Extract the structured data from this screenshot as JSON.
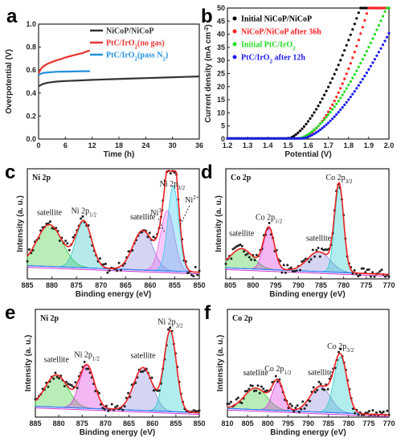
{
  "chart_data": [
    {
      "id": "a",
      "panel_label": "a",
      "type": "line",
      "xlabel": "Time (h)",
      "ylabel": "Overpotential (V)",
      "xlim": [
        0,
        36
      ],
      "ylim": [
        0,
        1.0
      ],
      "xticks": [
        0,
        6,
        12,
        18,
        24,
        30,
        36
      ],
      "yticks": [
        0.0,
        0.2,
        0.4,
        0.6,
        0.8,
        1.0
      ],
      "legend_position": "top-right",
      "series": [
        {
          "name": "NiCoP/NiCoP",
          "color": "#333333",
          "x": [
            0,
            1,
            2,
            4,
            6,
            9,
            12,
            16,
            20,
            24,
            28,
            32,
            36
          ],
          "y": [
            0.46,
            0.48,
            0.49,
            0.5,
            0.505,
            0.51,
            0.515,
            0.52,
            0.525,
            0.53,
            0.535,
            0.54,
            0.545
          ]
        },
        {
          "name": "PtC/IrO2(no gas)",
          "color": "#e8342f",
          "x": [
            0,
            0.5,
            1,
            2,
            3,
            4,
            5,
            6,
            7,
            8,
            9,
            10,
            11,
            11.5
          ],
          "y": [
            0.57,
            0.61,
            0.63,
            0.655,
            0.67,
            0.685,
            0.695,
            0.71,
            0.72,
            0.73,
            0.74,
            0.75,
            0.765,
            0.77
          ]
        },
        {
          "name": "PtC/IrO2(pass N2)",
          "color": "#1f8fe0",
          "x": [
            0,
            1,
            2,
            4,
            6,
            8,
            10,
            11.5
          ],
          "y": [
            0.56,
            0.575,
            0.58,
            0.585,
            0.587,
            0.588,
            0.59,
            0.59
          ]
        }
      ]
    },
    {
      "id": "b",
      "panel_label": "b",
      "type": "scatter",
      "xlabel": "Potential (V)",
      "ylabel": "Current density (mA cm-2)",
      "xlim": [
        1.2,
        2.0
      ],
      "ylim": [
        0,
        50
      ],
      "xticks": [
        1.2,
        1.3,
        1.4,
        1.5,
        1.6,
        1.7,
        1.8,
        1.9,
        2.0
      ],
      "yticks": [
        0,
        5,
        10,
        15,
        20,
        25,
        30,
        35,
        40,
        45,
        50
      ],
      "legend_position": "top-left",
      "series": [
        {
          "name": "Initial NiCoP/NiCoP",
          "color": "#000000",
          "onset": 1.5,
          "k": 80,
          "p": 1.6
        },
        {
          "name": "NiCoP/NiCoP after 36h",
          "color": "#ff2020",
          "onset": 1.55,
          "k": 115,
          "p": 1.9
        },
        {
          "name": "Initial PtC/IrO2",
          "color": "#22dd22",
          "onset": 1.55,
          "k": 58,
          "p": 1.6
        },
        {
          "name": "PtC/IrO2 after 12h",
          "color": "#1a1aee",
          "onset": 1.57,
          "k": 48,
          "p": 1.6
        }
      ]
    },
    {
      "id": "c",
      "panel_label": "c",
      "type": "line",
      "title": "Ni 2p",
      "xlabel": "Binding energy (eV)",
      "ylabel": "Intensity (a. u.)",
      "xlim": [
        885,
        850
      ],
      "xticks": [
        885,
        880,
        875,
        870,
        865,
        860,
        855,
        850
      ],
      "peaks": [
        {
          "center": 880.5,
          "height": 0.38,
          "width": 2.6,
          "color": "#33cc33",
          "label": "satellite"
        },
        {
          "center": 873.5,
          "height": 0.42,
          "width": 1.6,
          "color": "#2ec4c4",
          "label": "Ni 2p1/2"
        },
        {
          "center": 861.5,
          "height": 0.36,
          "width": 2.0,
          "color": "#8888dd",
          "label": "satellite"
        },
        {
          "center": 856.5,
          "height": 0.55,
          "width": 1.4,
          "color": "#ee66ee",
          "label": "Ni3+"
        },
        {
          "center": 855.3,
          "height": 0.78,
          "width": 1.1,
          "color": "#33ccee",
          "label": "Ni2+"
        }
      ],
      "baseline": [
        0.12,
        0.06
      ],
      "labels": [
        "Ni 2p3/2",
        "Ni3+",
        "Ni2+"
      ]
    },
    {
      "id": "d",
      "panel_label": "d",
      "type": "line",
      "title": "Co 2p",
      "xlabel": "Binding energy (eV)",
      "ylabel": "Intensity (a. u.)",
      "xlim": [
        806,
        770
      ],
      "xticks": [
        805,
        800,
        795,
        790,
        785,
        780,
        775,
        770
      ],
      "peaks": [
        {
          "center": 802.5,
          "height": 0.18,
          "width": 2.5,
          "color": "#33cc33",
          "label": "satellite"
        },
        {
          "center": 796.5,
          "height": 0.38,
          "width": 1.2,
          "color": "#dd33dd",
          "label": "Co 2p1/2"
        },
        {
          "center": 785.5,
          "height": 0.18,
          "width": 2.5,
          "color": "#8888dd",
          "label": "satellite"
        },
        {
          "center": 781.0,
          "height": 0.78,
          "width": 1.0,
          "color": "#22cccc",
          "label": "Co 2p3/2"
        }
      ],
      "baseline": [
        0.1,
        0.04
      ]
    },
    {
      "id": "e",
      "panel_label": "e",
      "type": "line",
      "title": "Ni 2p",
      "xlabel": "Binding energy (eV)",
      "ylabel": "Intensity (a. u.)",
      "xlim": [
        885,
        850
      ],
      "xticks": [
        885,
        880,
        875,
        870,
        865,
        860,
        855,
        850
      ],
      "peaks": [
        {
          "center": 880.5,
          "height": 0.3,
          "width": 2.4,
          "color": "#33cc33",
          "label": "satellite"
        },
        {
          "center": 874.0,
          "height": 0.4,
          "width": 1.6,
          "color": "#dd33dd",
          "label": "Ni 2p1/2"
        },
        {
          "center": 862.0,
          "height": 0.4,
          "width": 2.0,
          "color": "#8888dd",
          "label": "satellite"
        },
        {
          "center": 856.2,
          "height": 0.75,
          "width": 1.3,
          "color": "#22cccc",
          "label": "Ni 2p3/2"
        }
      ],
      "baseline": [
        0.1,
        0.04
      ]
    },
    {
      "id": "f",
      "panel_label": "f",
      "type": "line",
      "title": "Co 2p",
      "xlabel": "Binding energy (eV)",
      "ylabel": "Intensity (a. u.)",
      "xlim": [
        810,
        770
      ],
      "xticks": [
        810,
        805,
        800,
        795,
        790,
        785,
        780,
        775,
        770
      ],
      "peaks": [
        {
          "center": 803.0,
          "height": 0.2,
          "width": 2.8,
          "color": "#33cc33",
          "label": "satellite"
        },
        {
          "center": 797.5,
          "height": 0.26,
          "width": 1.4,
          "color": "#dd33dd",
          "label": "Co 2p1/2"
        },
        {
          "center": 787.0,
          "height": 0.24,
          "width": 2.5,
          "color": "#8888dd",
          "label": "satellite"
        },
        {
          "center": 782.0,
          "height": 0.52,
          "width": 1.6,
          "color": "#22cccc",
          "label": "Co 2p3/2"
        }
      ],
      "baseline": [
        0.08,
        0.02
      ]
    }
  ]
}
